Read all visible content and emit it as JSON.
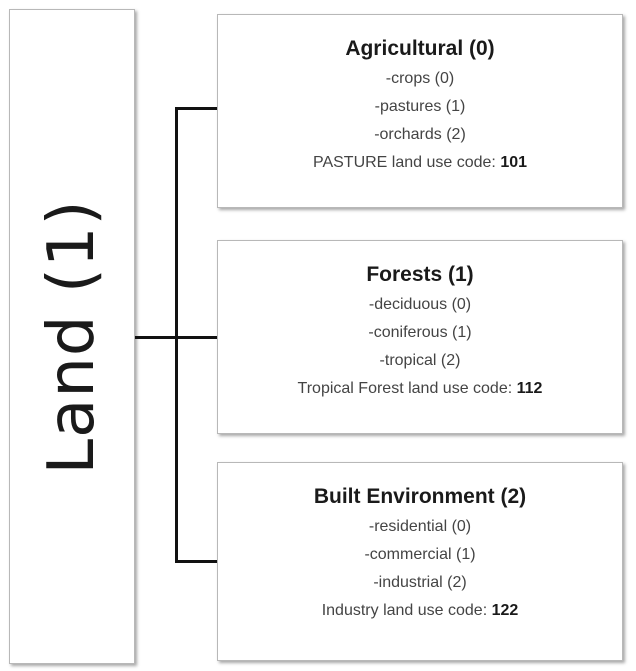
{
  "root": {
    "label": "Land (1)"
  },
  "categories": [
    {
      "title": "Agricultural (0)",
      "items": [
        "-crops (0)",
        "-pastures (1)",
        "-orchards (2)"
      ],
      "code_label": "PASTURE land use code: ",
      "code_value": "101"
    },
    {
      "title": "Forests (1)",
      "items": [
        "-deciduous (0)",
        "-coniferous (1)",
        "-tropical (2)"
      ],
      "code_label": "Tropical Forest land use code: ",
      "code_value": "112"
    },
    {
      "title": "Built Environment (2)",
      "items": [
        "-residential (0)",
        "-commercial  (1)",
        "-industrial (2)"
      ],
      "code_label": "Industry land use code: ",
      "code_value": "122"
    }
  ]
}
